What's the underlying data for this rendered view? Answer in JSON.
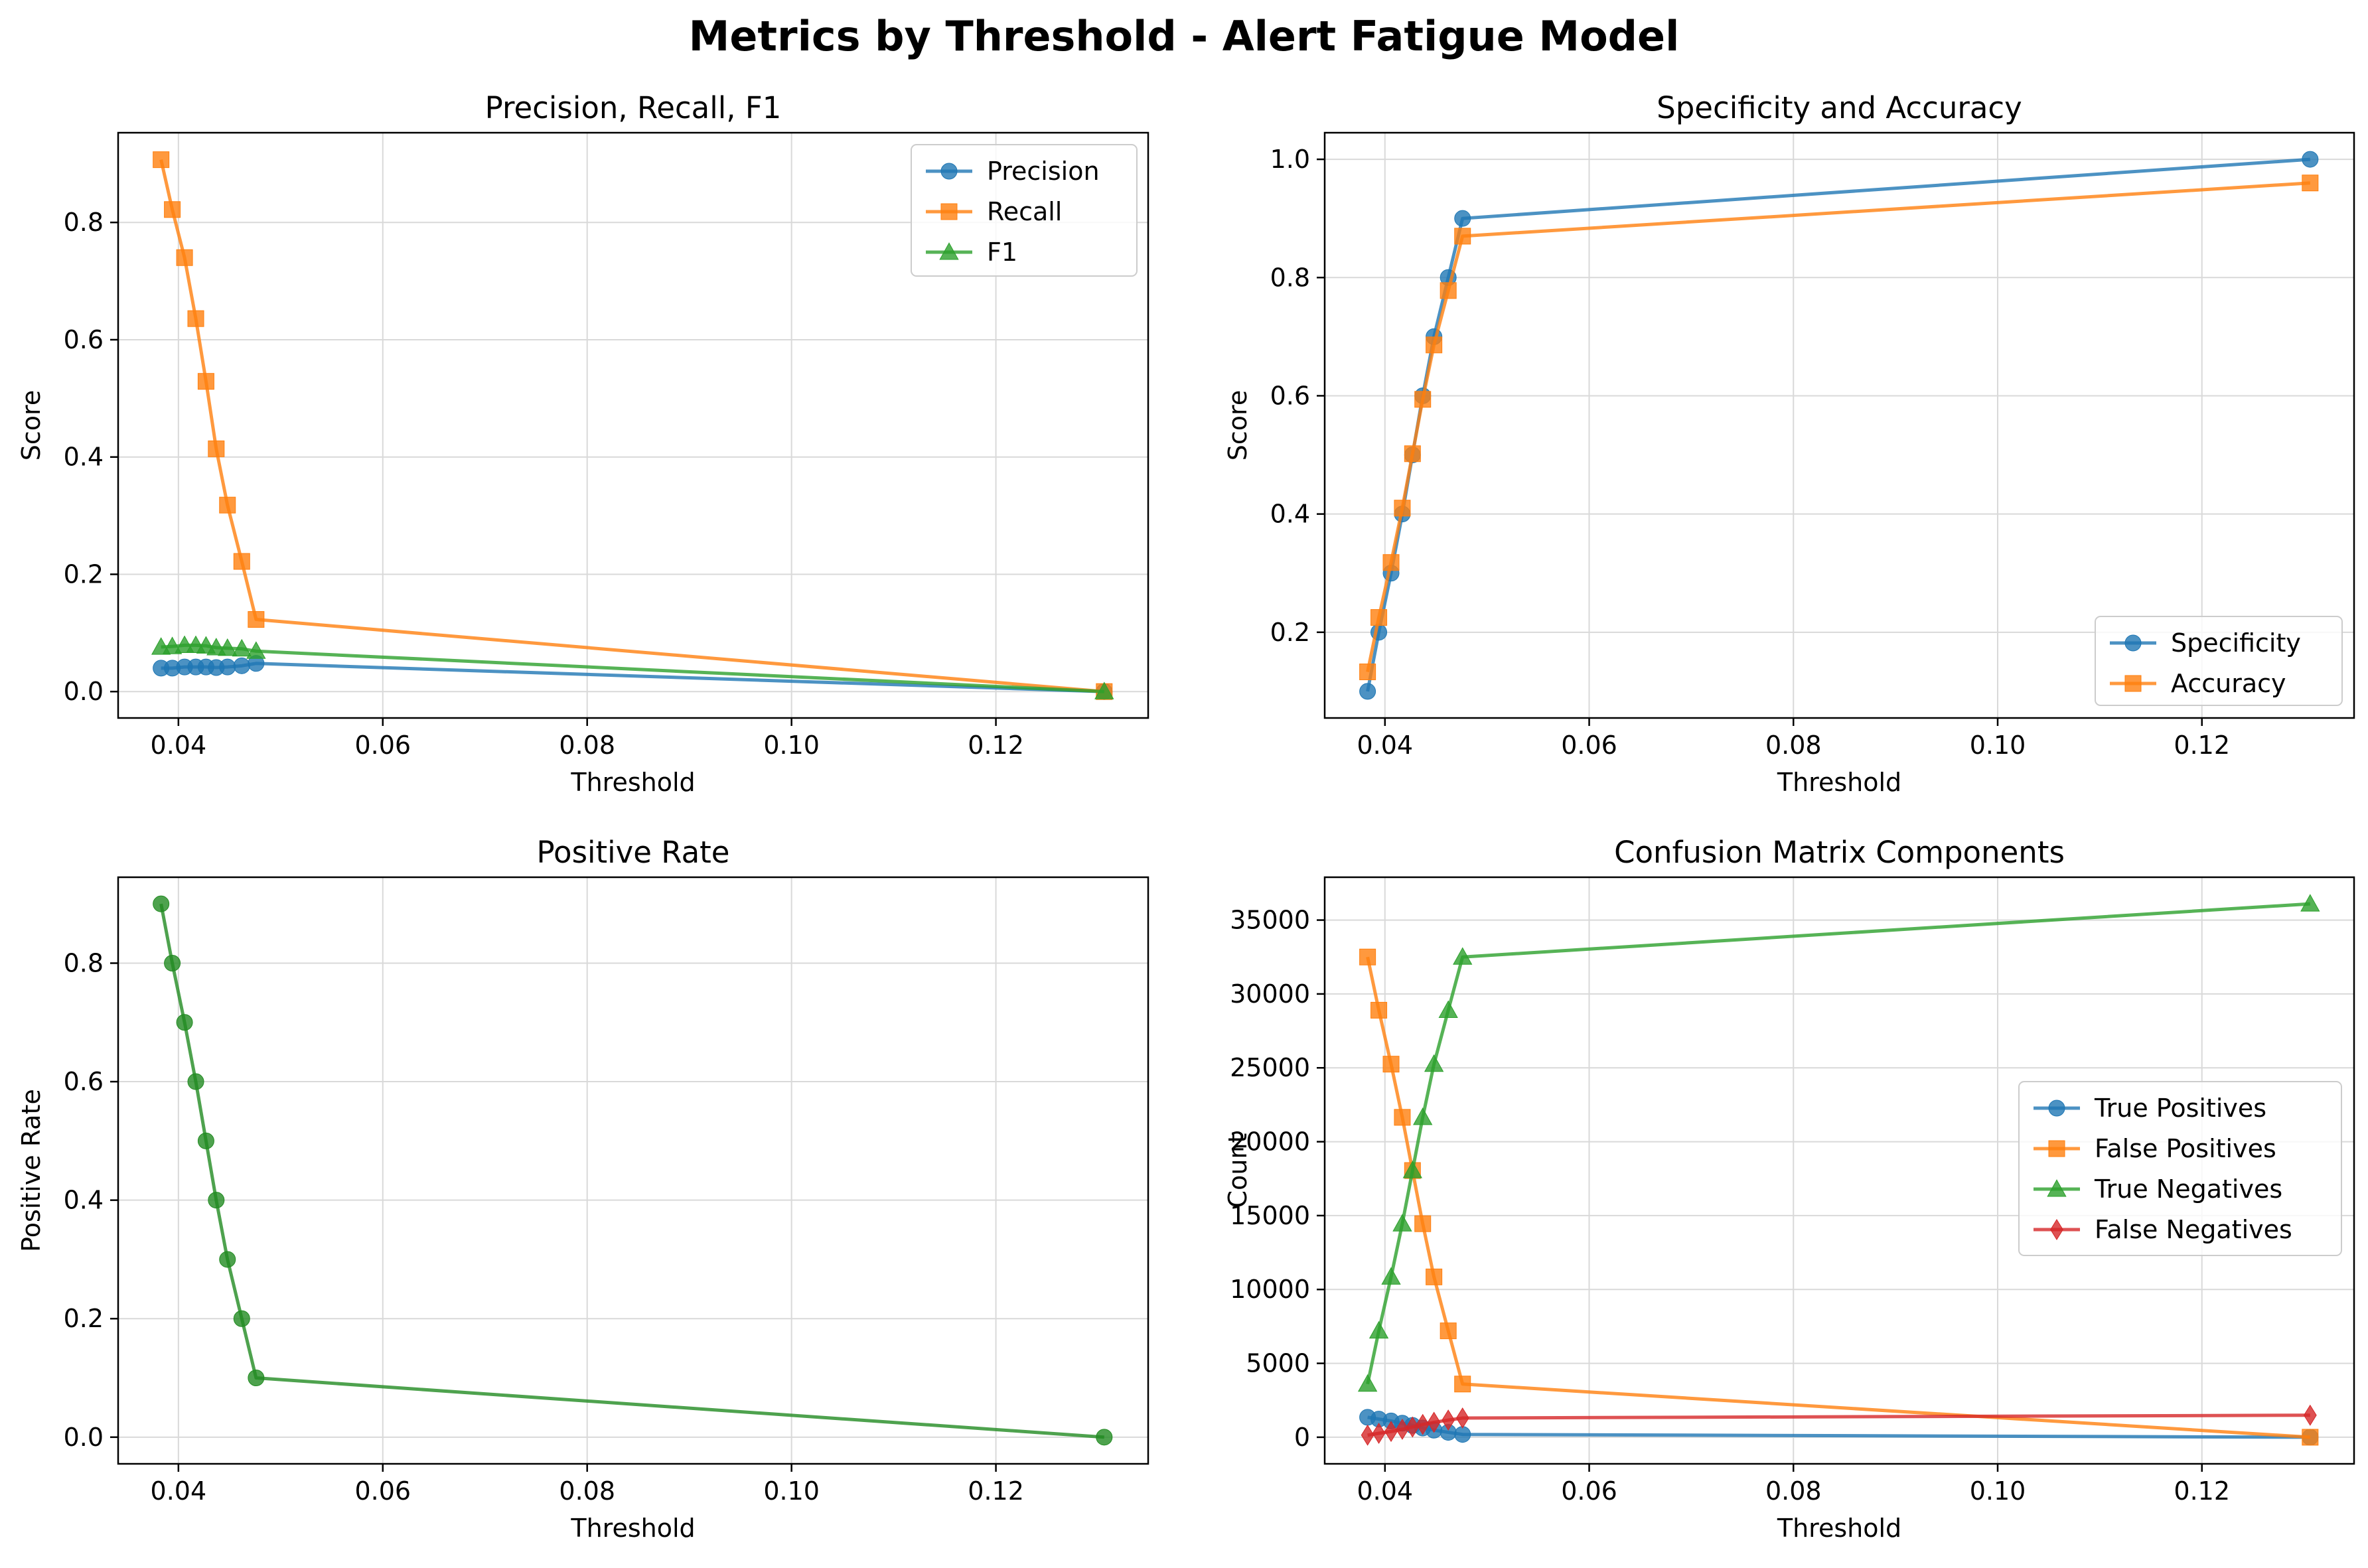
{
  "suptitle": "Metrics by Threshold - Alert Fatigue Model",
  "colors": {
    "blue": "#1f77b4",
    "orange": "#ff7f0e",
    "green": "#2ca02c",
    "red": "#d62728",
    "grid": "#d9d9d9"
  },
  "chart_data": [
    {
      "id": "prf",
      "type": "line",
      "title": "Precision, Recall, F1",
      "xlabel": "Threshold",
      "ylabel": "Score",
      "xlim": [
        0.0341,
        0.1349
      ],
      "ylim": [
        -0.045,
        0.953
      ],
      "xticks": [
        0.04,
        0.06,
        0.08,
        0.1,
        0.12
      ],
      "xtick_labels": [
        "0.04",
        "0.06",
        "0.08",
        "0.10",
        "0.12"
      ],
      "yticks": [
        0.0,
        0.2,
        0.4,
        0.6,
        0.8
      ],
      "ytick_labels": [
        "0.0",
        "0.2",
        "0.4",
        "0.6",
        "0.8"
      ],
      "grid": true,
      "legend_position": "upper right",
      "x": [
        0.0383,
        0.0394,
        0.0406,
        0.0417,
        0.0427,
        0.0437,
        0.0448,
        0.0462,
        0.0476,
        0.1306
      ],
      "series": [
        {
          "name": "Precision",
          "color": "#1f77b4",
          "marker": "circle",
          "values": [
            0.04,
            0.04,
            0.042,
            0.042,
            0.042,
            0.041,
            0.042,
            0.044,
            0.048,
            0.0
          ]
        },
        {
          "name": "Recall",
          "color": "#ff7f0e",
          "marker": "square",
          "values": [
            0.907,
            0.822,
            0.74,
            0.636,
            0.529,
            0.414,
            0.318,
            0.222,
            0.123,
            0.0
          ]
        },
        {
          "name": "F1",
          "color": "#2ca02c",
          "marker": "triangle",
          "values": [
            0.076,
            0.077,
            0.079,
            0.079,
            0.078,
            0.075,
            0.074,
            0.073,
            0.069,
            0.0
          ]
        }
      ]
    },
    {
      "id": "spec",
      "type": "line",
      "title": "Specificity and Accuracy",
      "xlabel": "Threshold",
      "ylabel": "Score",
      "xlim": [
        0.0341,
        0.1349
      ],
      "ylim": [
        0.055,
        1.045
      ],
      "xticks": [
        0.04,
        0.06,
        0.08,
        0.1,
        0.12
      ],
      "xtick_labels": [
        "0.04",
        "0.06",
        "0.08",
        "0.10",
        "0.12"
      ],
      "yticks": [
        0.2,
        0.4,
        0.6,
        0.8,
        1.0
      ],
      "ytick_labels": [
        "0.2",
        "0.4",
        "0.6",
        "0.8",
        "1.0"
      ],
      "grid": true,
      "legend_position": "lower right",
      "x": [
        0.0383,
        0.0394,
        0.0406,
        0.0417,
        0.0427,
        0.0437,
        0.0448,
        0.0462,
        0.0476,
        0.1306
      ],
      "series": [
        {
          "name": "Specificity",
          "color": "#1f77b4",
          "marker": "circle",
          "values": [
            0.1,
            0.2,
            0.3,
            0.4,
            0.5,
            0.6,
            0.7,
            0.8,
            0.9,
            1.0
          ]
        },
        {
          "name": "Accuracy",
          "color": "#ff7f0e",
          "marker": "square",
          "values": [
            0.133,
            0.225,
            0.318,
            0.41,
            0.502,
            0.594,
            0.686,
            0.778,
            0.87,
            0.96
          ]
        }
      ]
    },
    {
      "id": "pos",
      "type": "line",
      "title": "Positive Rate",
      "xlabel": "Threshold",
      "ylabel": "Positive Rate",
      "xlim": [
        0.0341,
        0.1349
      ],
      "ylim": [
        -0.045,
        0.945
      ],
      "xticks": [
        0.04,
        0.06,
        0.08,
        0.1,
        0.12
      ],
      "xtick_labels": [
        "0.04",
        "0.06",
        "0.08",
        "0.10",
        "0.12"
      ],
      "yticks": [
        0.0,
        0.2,
        0.4,
        0.6,
        0.8
      ],
      "ytick_labels": [
        "0.0",
        "0.2",
        "0.4",
        "0.6",
        "0.8"
      ],
      "grid": true,
      "legend_position": "none",
      "x": [
        0.0383,
        0.0394,
        0.0406,
        0.0417,
        0.0427,
        0.0437,
        0.0448,
        0.0462,
        0.0476,
        0.1306
      ],
      "series": [
        {
          "name": "",
          "color": "#228b22",
          "marker": "circle",
          "values": [
            0.9,
            0.8,
            0.7,
            0.6,
            0.5,
            0.4,
            0.3,
            0.2,
            0.1,
            0.0
          ]
        }
      ]
    },
    {
      "id": "cm",
      "type": "line",
      "title": "Confusion Matrix Components",
      "xlabel": "Threshold",
      "ylabel": "Count",
      "xlim": [
        0.0341,
        0.1349
      ],
      "ylim": [
        -1800,
        37900
      ],
      "xticks": [
        0.04,
        0.06,
        0.08,
        0.1,
        0.12
      ],
      "xtick_labels": [
        "0.04",
        "0.06",
        "0.08",
        "0.10",
        "0.12"
      ],
      "yticks": [
        0,
        5000,
        10000,
        15000,
        20000,
        25000,
        30000,
        35000
      ],
      "ytick_labels": [
        "0",
        "5000",
        "10000",
        "15000",
        "20000",
        "25000",
        "30000",
        "35000"
      ],
      "grid": true,
      "legend_position": "center right",
      "x": [
        0.0383,
        0.0394,
        0.0406,
        0.0417,
        0.0427,
        0.0437,
        0.0448,
        0.0462,
        0.0476,
        0.1306
      ],
      "series": [
        {
          "name": "True Positives",
          "color": "#1f77b4",
          "marker": "circle",
          "values": [
            1350,
            1225,
            1100,
            950,
            800,
            625,
            480,
            330,
            190,
            0
          ]
        },
        {
          "name": "False Positives",
          "color": "#ff7f0e",
          "marker": "square",
          "values": [
            32500,
            28900,
            25250,
            21650,
            18050,
            14450,
            10850,
            7200,
            3600,
            0
          ]
        },
        {
          "name": "True Negatives",
          "color": "#2ca02c",
          "marker": "triangle",
          "values": [
            3600,
            7200,
            10850,
            14450,
            18050,
            21650,
            25250,
            28900,
            32500,
            36100
          ]
        },
        {
          "name": "False Negatives",
          "color": "#d62728",
          "marker": "diamond",
          "values": [
            140,
            265,
            390,
            540,
            690,
            865,
            1010,
            1160,
            1300,
            1490
          ]
        }
      ]
    }
  ]
}
